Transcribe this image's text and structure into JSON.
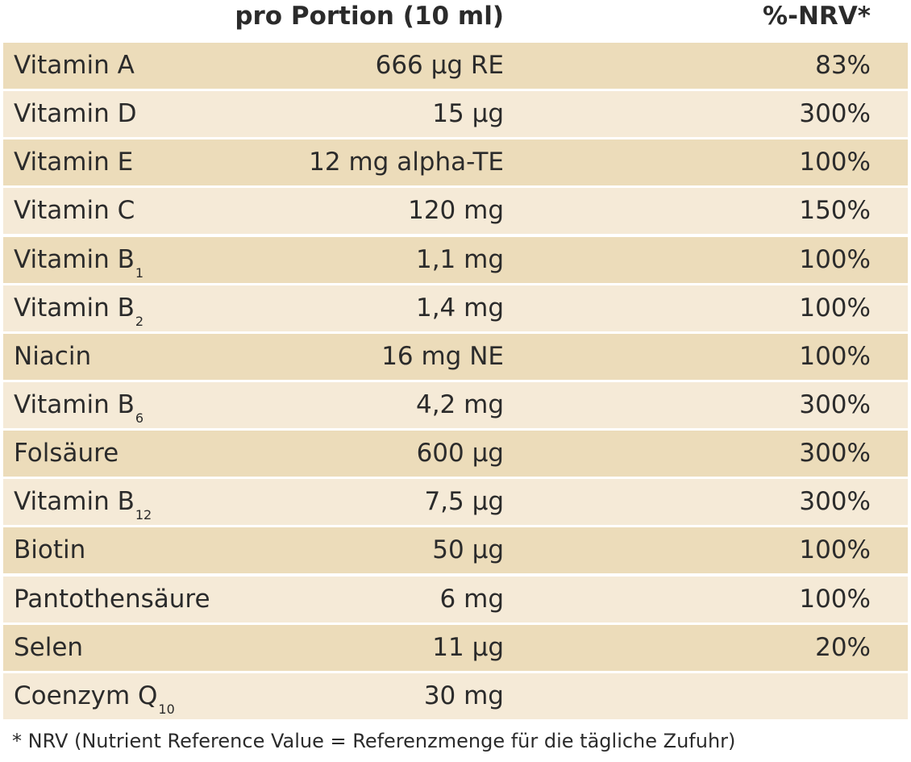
{
  "header": {
    "portion_label": "pro Portion (10 ml)",
    "nrv_label": "%-NRV*"
  },
  "rows": [
    {
      "name": "Vitamin A",
      "sub": "",
      "amount": "666 µg RE",
      "nrv": "83%"
    },
    {
      "name": "Vitamin D",
      "sub": "",
      "amount": "15 µg",
      "nrv": "300%"
    },
    {
      "name": "Vitamin E",
      "sub": "",
      "amount": "12 mg alpha-TE",
      "nrv": "100%"
    },
    {
      "name": "Vitamin C",
      "sub": "",
      "amount": "120 mg",
      "nrv": "150%"
    },
    {
      "name": "Vitamin B",
      "sub": "1",
      "amount": "1,1 mg",
      "nrv": "100%"
    },
    {
      "name": "Vitamin B",
      "sub": "2",
      "amount": "1,4 mg",
      "nrv": "100%"
    },
    {
      "name": "Niacin",
      "sub": "",
      "amount": "16 mg NE",
      "nrv": "100%"
    },
    {
      "name": "Vitamin B",
      "sub": "6",
      "amount": "4,2 mg",
      "nrv": "300%"
    },
    {
      "name": "Folsäure",
      "sub": "",
      "amount": "600 µg",
      "nrv": "300%"
    },
    {
      "name": "Vitamin B",
      "sub": "12",
      "amount": "7,5 µg",
      "nrv": "300%"
    },
    {
      "name": "Biotin",
      "sub": "",
      "amount": "50 µg",
      "nrv": "100%"
    },
    {
      "name": "Pantothensäure",
      "sub": "",
      "amount": "6 mg",
      "nrv": "100%"
    },
    {
      "name": "Selen",
      "sub": "",
      "amount": "11 µg",
      "nrv": "20%"
    },
    {
      "name": "Coenzym Q",
      "sub": "10",
      "amount": "30 mg",
      "nrv": ""
    }
  ],
  "footnote": "* NRV (Nutrient Reference Value = Referenzmenge für die tägliche Zufuhr)",
  "colors": {
    "row_dark": "#ecdcba",
    "row_light": "#f5ead7",
    "text": "#2b2b2b"
  }
}
